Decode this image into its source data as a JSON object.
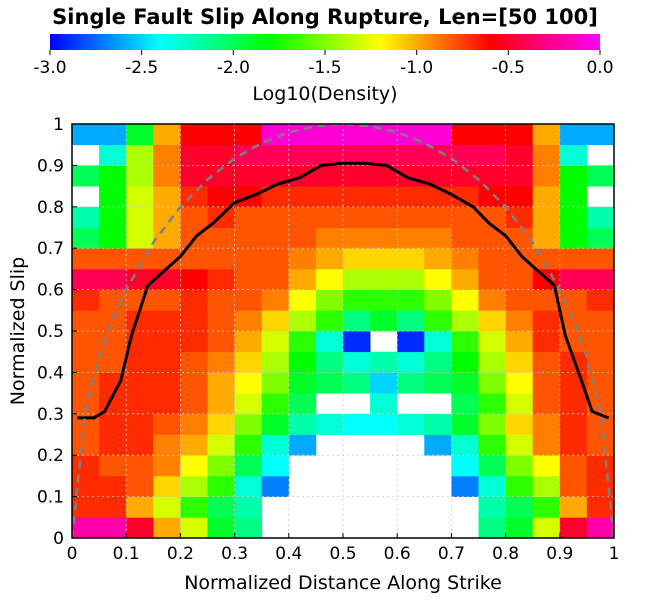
{
  "chart_data": {
    "type": "heatmap",
    "title": "Single Fault Slip Along Rupture, Len=[50 100]",
    "xlabel": "Normalized Distance Along Strike",
    "ylabel": "Normalized Slip",
    "xlim": [
      0,
      1
    ],
    "ylim": [
      0,
      1
    ],
    "x_ticks": [
      "0",
      "0.1",
      "0.2",
      "0.3",
      "0.4",
      "0.5",
      "0.6",
      "0.7",
      "0.8",
      "0.9",
      "1"
    ],
    "y_ticks": [
      "0",
      "0.1",
      "0.2",
      "0.3",
      "0.4",
      "0.5",
      "0.6",
      "0.7",
      "0.8",
      "0.9",
      "1"
    ],
    "grid": true,
    "colorbar": {
      "label": "Log10(Density)",
      "range": [
        -3.0,
        0.0
      ],
      "ticks": [
        "-3.0",
        "-2.5",
        "-2.0",
        "-1.5",
        "-1.0",
        "-0.5",
        "0.0"
      ],
      "colormap": [
        "#0000ff",
        "#00ffff",
        "#00ff00",
        "#ffff00",
        "#ff0000",
        "#ff00ff"
      ]
    },
    "heatmap": {
      "cols": 20,
      "rows": 20,
      "x_step": 0.05,
      "y_step": 0.05,
      "note_empty": "null = white (no density)",
      "rows_log10_density_bottom_to_top": [
        [
          -0.2,
          -0.2,
          -0.5,
          -1.0,
          -1.3,
          -1.9,
          -2.1,
          null,
          null,
          null,
          null,
          null,
          null,
          null,
          null,
          -2.1,
          -1.9,
          -1.3,
          -0.5,
          -0.2
        ],
        [
          -0.7,
          -0.7,
          -1.0,
          -1.3,
          -1.7,
          -2.0,
          -2.2,
          null,
          null,
          null,
          null,
          null,
          null,
          null,
          null,
          -2.2,
          -2.0,
          -1.7,
          -1.0,
          -0.7
        ],
        [
          -0.7,
          -0.7,
          -0.8,
          -1.1,
          -1.4,
          -1.7,
          -2.3,
          -2.7,
          null,
          null,
          null,
          null,
          null,
          null,
          -2.7,
          -2.3,
          -1.7,
          -1.4,
          -0.8,
          -0.7
        ],
        [
          -0.7,
          -0.8,
          -0.8,
          -0.9,
          -1.2,
          -1.5,
          -2.0,
          -2.4,
          null,
          null,
          null,
          null,
          null,
          null,
          -2.4,
          -2.0,
          -1.5,
          -1.2,
          -0.8,
          -0.7
        ],
        [
          -0.8,
          -0.7,
          -0.7,
          -0.9,
          -1.0,
          -1.3,
          -1.7,
          -2.3,
          -2.6,
          null,
          null,
          null,
          null,
          -2.6,
          -2.3,
          -1.7,
          -1.3,
          -0.9,
          -0.7,
          -0.8
        ],
        [
          -0.8,
          -0.7,
          -0.7,
          -0.8,
          -0.9,
          -1.1,
          -1.5,
          -1.9,
          -2.2,
          -2.3,
          -2.4,
          -2.4,
          -2.3,
          -2.2,
          -1.9,
          -1.5,
          -1.1,
          -0.9,
          -0.7,
          -0.8
        ],
        [
          -0.8,
          -0.7,
          -0.7,
          -0.7,
          -0.8,
          -1.0,
          -1.3,
          -1.7,
          -2.0,
          null,
          null,
          -2.3,
          null,
          null,
          -2.0,
          -1.7,
          -1.3,
          -0.8,
          -0.7,
          -0.8
        ],
        [
          -0.8,
          -0.7,
          -0.7,
          -0.7,
          -0.8,
          -1.0,
          -1.2,
          -1.5,
          -1.9,
          -2.0,
          -2.1,
          -2.5,
          -2.1,
          -2.0,
          -1.9,
          -1.5,
          -1.2,
          -0.8,
          -0.7,
          -0.8
        ],
        [
          -0.8,
          -0.8,
          -0.7,
          -0.7,
          -0.8,
          -0.9,
          -1.1,
          -1.4,
          -1.8,
          -2.1,
          -2.3,
          -2.2,
          -2.3,
          -2.1,
          -1.8,
          -1.4,
          -1.1,
          -0.8,
          -0.7,
          -0.8
        ],
        [
          -0.8,
          -0.8,
          -0.7,
          -0.7,
          -0.7,
          -0.8,
          -1.0,
          -1.3,
          -1.7,
          -2.3,
          -2.9,
          null,
          -2.9,
          -2.3,
          -1.7,
          -1.3,
          -1.0,
          -0.7,
          -0.8,
          -0.8
        ],
        [
          -0.8,
          -0.8,
          -0.7,
          -0.7,
          -0.7,
          -0.8,
          -0.9,
          -1.1,
          -1.4,
          -1.7,
          -2.1,
          -1.9,
          -2.1,
          -1.7,
          -1.4,
          -1.1,
          -0.9,
          -0.7,
          -0.8,
          -0.8
        ],
        [
          -0.7,
          -0.8,
          -0.8,
          -0.8,
          -0.7,
          -0.8,
          -0.8,
          -0.9,
          -1.2,
          -1.5,
          -1.7,
          -1.7,
          -1.7,
          -1.5,
          -1.2,
          -0.9,
          -0.8,
          -0.8,
          -0.8,
          -0.7
        ],
        [
          -0.4,
          -0.4,
          -0.5,
          -0.5,
          -0.6,
          -0.7,
          -0.8,
          -0.8,
          -1.0,
          -1.2,
          -1.4,
          -1.4,
          -1.4,
          -1.2,
          -1.0,
          -0.8,
          -0.8,
          -0.6,
          -0.4,
          -0.4
        ],
        [
          -0.8,
          -0.8,
          -0.8,
          -0.8,
          -0.8,
          -0.8,
          -0.8,
          -0.8,
          -0.9,
          -1.0,
          -1.1,
          -1.1,
          -1.1,
          -1.0,
          -0.9,
          -0.8,
          -0.8,
          -0.8,
          -0.8,
          -0.8
        ],
        [
          -2.0,
          -1.8,
          -1.3,
          -1.0,
          -0.8,
          -0.8,
          -0.8,
          -0.8,
          -0.8,
          -0.9,
          -0.9,
          -0.9,
          -0.9,
          -0.9,
          -0.8,
          -0.8,
          -0.8,
          -1.0,
          -1.8,
          -2.0
        ],
        [
          -2.2,
          -1.8,
          -1.3,
          -1.0,
          -0.8,
          -0.7,
          -0.8,
          -0.8,
          -0.8,
          -0.8,
          -0.8,
          -0.8,
          -0.8,
          -0.8,
          -0.8,
          -0.8,
          -0.7,
          -1.0,
          -1.8,
          -2.2
        ],
        [
          null,
          -1.8,
          -1.3,
          -1.0,
          -0.7,
          -0.6,
          -0.6,
          -0.7,
          -0.7,
          -0.7,
          -0.7,
          -0.7,
          -0.7,
          -0.7,
          -0.7,
          -0.6,
          -0.6,
          -1.0,
          -1.8,
          null
        ],
        [
          -2.0,
          -1.8,
          -1.4,
          -0.9,
          -0.5,
          -0.5,
          -0.5,
          -0.5,
          -0.5,
          -0.5,
          -0.5,
          -0.5,
          -0.5,
          -0.5,
          -0.5,
          -0.5,
          -0.5,
          -0.9,
          -1.8,
          -2.0
        ],
        [
          null,
          -2.3,
          -1.4,
          -0.9,
          -0.5,
          -0.5,
          -0.4,
          -0.4,
          -0.4,
          -0.4,
          -0.4,
          -0.4,
          -0.4,
          -0.4,
          -0.4,
          -0.4,
          -0.5,
          -0.9,
          -2.3,
          null
        ],
        [
          -2.6,
          -2.6,
          -1.9,
          -1.0,
          -0.6,
          -0.6,
          -0.6,
          -0.1,
          -0.1,
          -0.1,
          -0.1,
          -0.1,
          -0.1,
          -0.1,
          -0.6,
          -0.6,
          -0.6,
          -1.0,
          -2.6,
          -2.6
        ]
      ]
    },
    "series": [
      {
        "style": "solid-black",
        "x": [
          0.01,
          0.04,
          0.06,
          0.09,
          0.11,
          0.14,
          0.17,
          0.2,
          0.23,
          0.26,
          0.3,
          0.34,
          0.38,
          0.42,
          0.46,
          0.5,
          0.54,
          0.58,
          0.62,
          0.66,
          0.7,
          0.74,
          0.77,
          0.8,
          0.83,
          0.86,
          0.89,
          0.91,
          0.94,
          0.96,
          0.99
        ],
        "y": [
          0.29,
          0.29,
          0.305,
          0.38,
          0.49,
          0.61,
          0.645,
          0.68,
          0.73,
          0.76,
          0.81,
          0.83,
          0.855,
          0.87,
          0.9,
          0.905,
          0.905,
          0.9,
          0.87,
          0.855,
          0.83,
          0.8,
          0.76,
          0.73,
          0.68,
          0.645,
          0.61,
          0.49,
          0.38,
          0.305,
          0.29
        ]
      },
      {
        "style": "dashed-gray",
        "x": [
          0.0,
          0.025,
          0.05,
          0.075,
          0.1,
          0.15,
          0.2,
          0.25,
          0.3,
          0.35,
          0.4,
          0.45,
          0.5,
          0.55,
          0.6,
          0.65,
          0.7,
          0.75,
          0.8,
          0.85,
          0.9,
          0.925,
          0.95,
          0.975,
          1.0
        ],
        "y": [
          0.0,
          0.31,
          0.436,
          0.527,
          0.6,
          0.714,
          0.8,
          0.866,
          0.917,
          0.954,
          0.98,
          0.995,
          1.0,
          0.995,
          0.98,
          0.954,
          0.917,
          0.866,
          0.8,
          0.714,
          0.6,
          0.527,
          0.436,
          0.31,
          0.0
        ]
      }
    ]
  }
}
